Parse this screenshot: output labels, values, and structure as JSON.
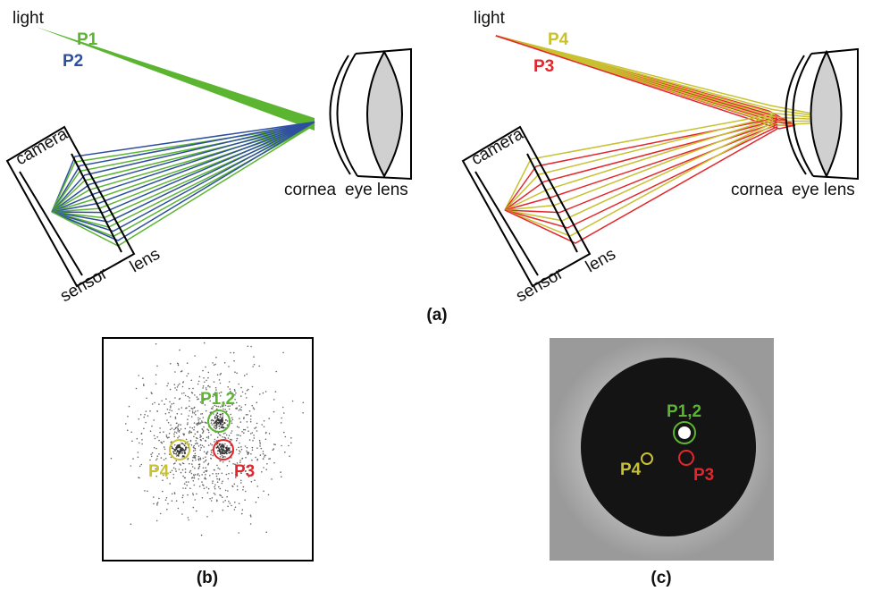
{
  "panel_a": {
    "left": {
      "light": "light",
      "beams": [
        "P1",
        "P2"
      ],
      "camera": "camera",
      "sensor": "sensor",
      "lens": "lens",
      "cornea": "cornea",
      "eye_lens": "eye lens"
    },
    "right": {
      "light": "light",
      "beams": [
        "P4",
        "P3"
      ],
      "camera": "camera",
      "sensor": "sensor",
      "lens": "lens",
      "cornea": "cornea",
      "eye_lens": "eye lens"
    },
    "caption": "(a)"
  },
  "panel_b": {
    "labels": [
      "P1,2",
      "P4",
      "P3"
    ],
    "caption": "(b)"
  },
  "panel_c": {
    "labels": [
      "P1,2",
      "P4",
      "P3"
    ],
    "caption": "(c)"
  }
}
